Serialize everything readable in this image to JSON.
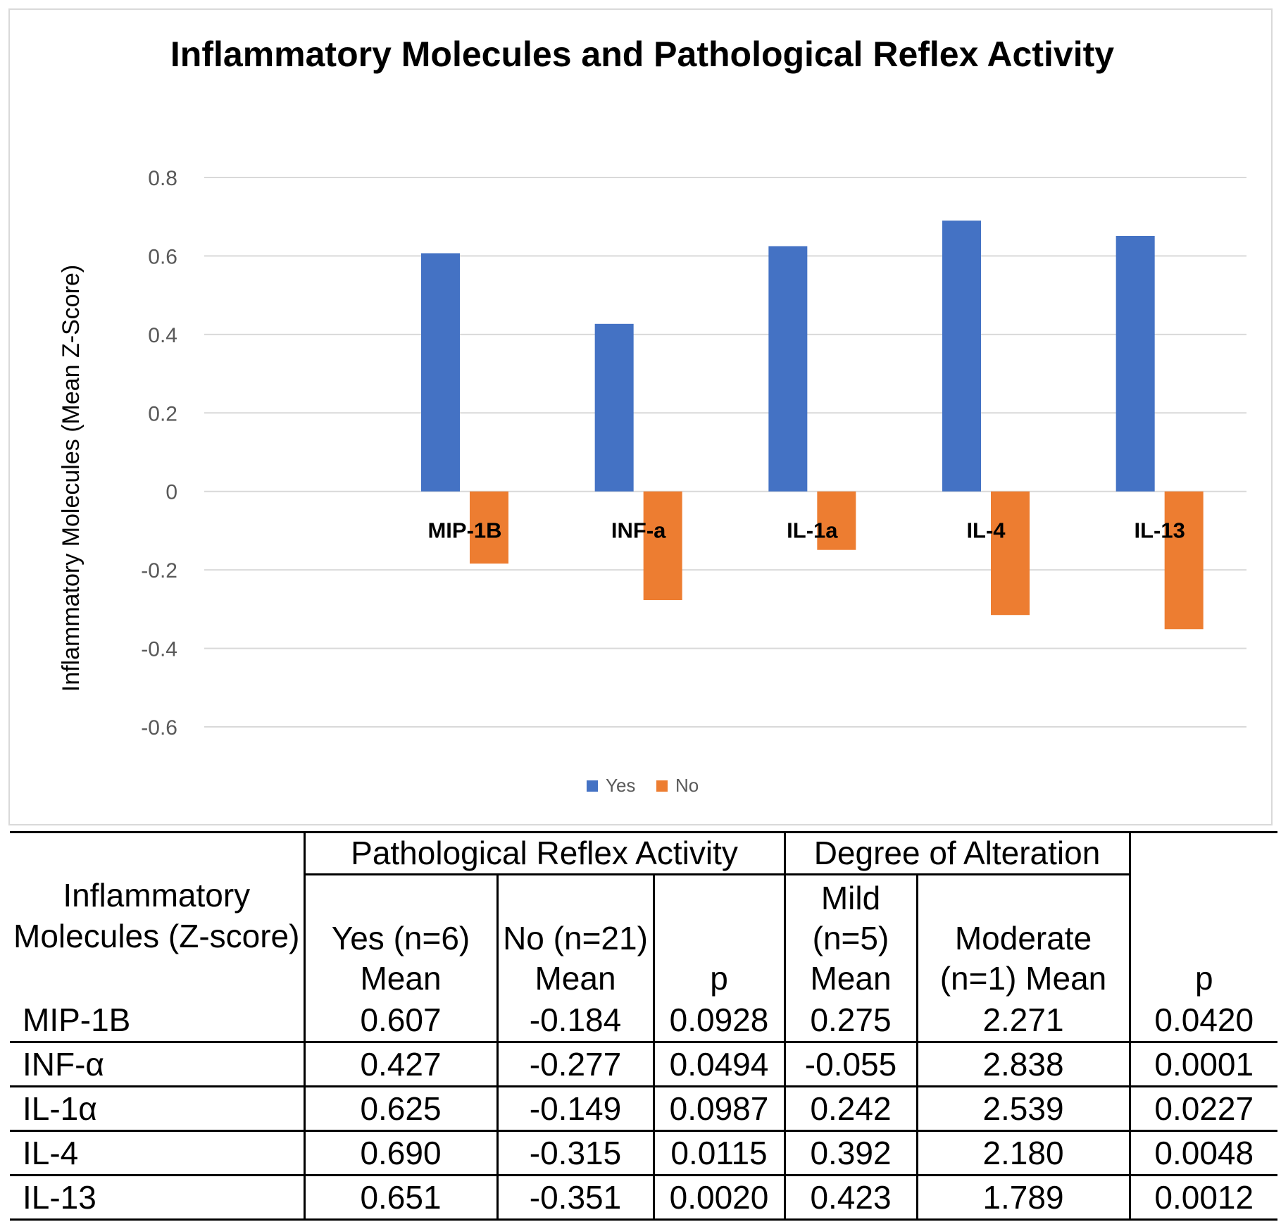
{
  "chart_data": {
    "type": "bar",
    "title": "Inflammatory Molecules and Pathological Reflex Activity",
    "xlabel": "",
    "ylabel": "Inflammatory Molecules (Mean Z-Score)",
    "ylim": [
      -0.6,
      0.8
    ],
    "yticks": [
      "0.8",
      "0.6",
      "0.4",
      "0.2",
      "0",
      "-0.2",
      "-0.4",
      "-0.6"
    ],
    "ytick_values": [
      0.8,
      0.6,
      0.4,
      0.2,
      0,
      -0.2,
      -0.4,
      -0.6
    ],
    "grid": true,
    "legend_position": "bottom-center",
    "categories": [
      "",
      "MIP-1B",
      "INF-a",
      "IL-1a",
      "IL-4",
      "IL-13"
    ],
    "series": [
      {
        "name": "Yes",
        "color": "#4472c4",
        "values": [
          null,
          0.607,
          0.427,
          0.625,
          0.69,
          0.651
        ]
      },
      {
        "name": "No",
        "color": "#ed7d31",
        "values": [
          null,
          -0.184,
          -0.277,
          -0.149,
          -0.315,
          -0.351
        ]
      }
    ]
  },
  "table": {
    "row_header": "Inflammatory Molecules (Z-score)",
    "group1": "Pathological Reflex Activity",
    "group2": "Degree of Alteration",
    "col_yes": "Yes (n=6) Mean",
    "col_no": "No (n=21) Mean",
    "col_p1": "p",
    "col_mild": "Mild (n=5) Mean",
    "col_moderate": "Moderate (n=1) Mean",
    "col_p2": "p",
    "rows": [
      {
        "name": "MIP-1B",
        "yes": "0.607",
        "no": "-0.184",
        "p1": "0.0928",
        "mild": "0.275",
        "moderate": "2.271",
        "p2": "0.0420"
      },
      {
        "name": "INF-α",
        "yes": "0.427",
        "no": "-0.277",
        "p1": "0.0494",
        "mild": "-0.055",
        "moderate": "2.838",
        "p2": "0.0001"
      },
      {
        "name": "IL-1α",
        "yes": "0.625",
        "no": "-0.149",
        "p1": "0.0987",
        "mild": "0.242",
        "moderate": "2.539",
        "p2": "0.0227"
      },
      {
        "name": "IL-4",
        "yes": "0.690",
        "no": "-0.315",
        "p1": "0.0115",
        "mild": "0.392",
        "moderate": "2.180",
        "p2": "0.0048"
      },
      {
        "name": "IL-13",
        "yes": "0.651",
        "no": "-0.351",
        "p1": "0.0020",
        "mild": "0.423",
        "moderate": "1.789",
        "p2": "0.0012"
      }
    ]
  }
}
